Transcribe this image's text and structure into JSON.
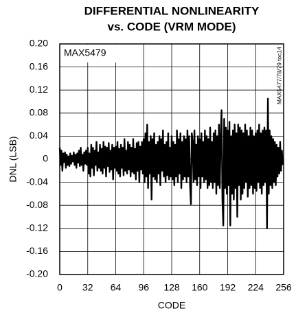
{
  "chart_data": {
    "type": "line",
    "title": [
      "DIFFERENTIAL NONLINEARITY",
      "vs. CODE (VRM MODE)"
    ],
    "x_label": "CODE",
    "y_label": "DNL (LSB)",
    "annotations": [
      "MAX5479",
      "MAX5477/78/79 toc14"
    ],
    "color": "#000000",
    "grid": true,
    "xlim": [
      0,
      256
    ],
    "xticks": [
      0,
      32,
      64,
      96,
      128,
      160,
      192,
      224,
      256
    ],
    "ylim": [
      -0.2,
      0.2
    ],
    "yticks": [
      {
        "value": -0.2,
        "label": "-0.20"
      },
      -0.16,
      -0.12,
      -0.08,
      -0.04,
      0,
      0.04,
      0.08,
      0.12,
      0.16,
      {
        "value": 0.2,
        "label": "0.20"
      }
    ],
    "x": [
      0,
      1,
      2,
      3,
      4,
      5,
      6,
      7,
      8,
      9,
      10,
      11,
      12,
      13,
      14,
      15,
      16,
      17,
      18,
      19,
      20,
      21,
      22,
      23,
      24,
      25,
      26,
      27,
      28,
      29,
      30,
      31,
      32,
      33,
      34,
      35,
      36,
      37,
      38,
      39,
      40,
      41,
      42,
      43,
      44,
      45,
      46,
      47,
      48,
      49,
      50,
      51,
      52,
      53,
      54,
      55,
      56,
      57,
      58,
      59,
      60,
      61,
      62,
      63,
      64,
      65,
      66,
      67,
      68,
      69,
      70,
      71,
      72,
      73,
      74,
      75,
      76,
      77,
      78,
      79,
      80,
      81,
      82,
      83,
      84,
      85,
      86,
      87,
      88,
      89,
      90,
      91,
      92,
      93,
      94,
      95,
      96,
      97,
      98,
      99,
      100,
      101,
      102,
      103,
      104,
      105,
      106,
      107,
      108,
      109,
      110,
      111,
      112,
      113,
      114,
      115,
      116,
      117,
      118,
      119,
      120,
      121,
      122,
      123,
      124,
      125,
      126,
      127,
      128,
      129,
      130,
      131,
      132,
      133,
      134,
      135,
      136,
      137,
      138,
      139,
      140,
      141,
      142,
      143,
      144,
      145,
      146,
      147,
      148,
      149,
      150,
      151,
      152,
      153,
      154,
      155,
      156,
      157,
      158,
      159,
      160,
      161,
      162,
      163,
      164,
      165,
      166,
      167,
      168,
      169,
      170,
      171,
      172,
      173,
      174,
      175,
      176,
      177,
      178,
      179,
      180,
      181,
      182,
      183,
      184,
      185,
      186,
      187,
      188,
      189,
      190,
      191,
      192,
      193,
      194,
      195,
      196,
      197,
      198,
      199,
      200,
      201,
      202,
      203,
      204,
      205,
      206,
      207,
      208,
      209,
      210,
      211,
      212,
      213,
      214,
      215,
      216,
      217,
      218,
      219,
      220,
      221,
      222,
      223,
      224,
      225,
      226,
      227,
      228,
      229,
      230,
      231,
      232,
      233,
      234,
      235,
      236,
      237,
      238,
      239,
      240,
      241,
      242,
      243,
      244,
      245,
      246,
      247,
      248,
      249,
      250,
      251,
      252,
      253,
      254,
      255
    ],
    "values": [
      0.02,
      -0.01,
      0.015,
      -0.02,
      0.01,
      -0.005,
      0.012,
      -0.015,
      0.008,
      -0.01,
      0.005,
      -0.012,
      0.01,
      -0.008,
      0.006,
      -0.004,
      0.012,
      -0.01,
      0.008,
      -0.015,
      0.01,
      -0.006,
      0.015,
      -0.012,
      0.02,
      -0.01,
      0.008,
      -0.02,
      0.012,
      -0.008,
      0.015,
      -0.01,
      0.02,
      -0.025,
      0.01,
      -0.03,
      0.025,
      -0.015,
      0.02,
      -0.028,
      0.015,
      -0.01,
      0.03,
      -0.02,
      0.012,
      -0.015,
      0.025,
      -0.02,
      0.018,
      -0.025,
      0.03,
      -0.015,
      0.022,
      -0.03,
      0.02,
      -0.012,
      0.028,
      -0.022,
      0.015,
      -0.018,
      0.025,
      -0.035,
      0.02,
      -0.015,
      0.022,
      -0.02,
      0.03,
      -0.025,
      0.018,
      -0.03,
      0.025,
      -0.015,
      0.02,
      -0.028,
      0.035,
      -0.02,
      0.015,
      -0.025,
      0.03,
      -0.018,
      0.025,
      -0.03,
      0.02,
      -0.022,
      0.035,
      -0.025,
      0.018,
      -0.035,
      0.028,
      -0.02,
      0.03,
      -0.04,
      0.022,
      -0.018,
      0.03,
      -0.025,
      0.035,
      -0.04,
      0.045,
      -0.03,
      0.06,
      -0.05,
      0.03,
      -0.025,
      0.04,
      -0.07,
      0.035,
      -0.03,
      0.045,
      -0.035,
      0.025,
      -0.04,
      0.03,
      -0.025,
      0.04,
      -0.045,
      0.035,
      -0.02,
      0.05,
      -0.03,
      0.025,
      -0.04,
      0.03,
      -0.028,
      0.045,
      -0.035,
      0.02,
      -0.03,
      0.04,
      -0.035,
      0.03,
      -0.045,
      0.025,
      -0.03,
      0.05,
      -0.04,
      0.035,
      -0.025,
      0.045,
      -0.05,
      0.03,
      -0.035,
      0.04,
      -0.03,
      0.035,
      -0.04,
      0.05,
      -0.03,
      0.04,
      -0.045,
      -0.078,
      0.045,
      0.03,
      -0.04,
      0.05,
      -0.035,
      0.025,
      -0.045,
      0.04,
      -0.03,
      0.035,
      -0.05,
      0.045,
      -0.03,
      0.03,
      -0.04,
      0.05,
      -0.035,
      0.04,
      -0.05,
      0.035,
      -0.045,
      0.055,
      -0.04,
      0.03,
      -0.05,
      0.045,
      -0.04,
      0.05,
      -0.06,
      0.04,
      -0.045,
      0.06,
      -0.05,
      0.04,
      0.085,
      -0.07,
      -0.115,
      0.07,
      -0.05,
      0.055,
      -0.06,
      0.05,
      -0.045,
      0.065,
      -0.115,
      0.04,
      -0.06,
      0.05,
      -0.07,
      0.06,
      -0.05,
      0.045,
      -0.1,
      0.06,
      -0.045,
      0.055,
      -0.07,
      0.05,
      -0.06,
      0.045,
      -0.05,
      0.06,
      -0.04,
      0.05,
      -0.065,
      0.04,
      -0.05,
      0.055,
      -0.045,
      0.05,
      -0.06,
      0.04,
      -0.05,
      0.045,
      -0.055,
      0.05,
      -0.04,
      0.06,
      -0.05,
      0.045,
      -0.06,
      0.05,
      -0.045,
      0.055,
      -0.04,
      0.05,
      -0.12,
      0.105,
      -0.06,
      0.05,
      -0.045,
      0.04,
      -0.05,
      0.035,
      -0.04,
      0.03,
      -0.045,
      0.025,
      -0.03,
      0.02,
      -0.025,
      0.03,
      -0.02,
      0.015,
      -0.01
    ]
  }
}
